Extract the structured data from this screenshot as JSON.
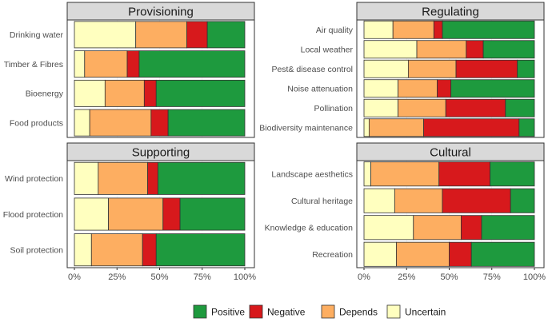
{
  "chart_data": {
    "type": "bar",
    "orientation": "horizontal",
    "stacked": true,
    "x_ticks": [
      "0%",
      "25%",
      "50%",
      "75%",
      "100%"
    ],
    "xlim": [
      0,
      100
    ],
    "segment_order": [
      "Uncertain",
      "Depends",
      "Negative",
      "Positive"
    ],
    "legend": [
      {
        "name": "Positive",
        "color": "#1e9a3e"
      },
      {
        "name": "Negative",
        "color": "#d7191c"
      },
      {
        "name": "Depends",
        "color": "#fdae61"
      },
      {
        "name": "Uncertain",
        "color": "#ffffbf"
      }
    ],
    "panels": [
      {
        "title": "Provisioning",
        "categories": [
          {
            "label": "Drinking water",
            "Uncertain": 36,
            "Depends": 30,
            "Negative": 12,
            "Positive": 22
          },
          {
            "label": "Timber & Fibres",
            "Uncertain": 6,
            "Depends": 25,
            "Negative": 7,
            "Positive": 62
          },
          {
            "label": "Bioenergy",
            "Uncertain": 18,
            "Depends": 23,
            "Negative": 7,
            "Positive": 52
          },
          {
            "label": "Food products",
            "Uncertain": 9,
            "Depends": 36,
            "Negative": 10,
            "Positive": 45
          }
        ]
      },
      {
        "title": "Regulating",
        "categories": [
          {
            "label": "Air quality",
            "Uncertain": 17,
            "Depends": 24,
            "Negative": 5,
            "Positive": 54
          },
          {
            "label": "Local weather",
            "Uncertain": 31,
            "Depends": 29,
            "Negative": 10,
            "Positive": 30
          },
          {
            "label": "Pest& disease control",
            "Uncertain": 26,
            "Depends": 28,
            "Negative": 36,
            "Positive": 10
          },
          {
            "label": "Noise attenuation",
            "Uncertain": 20,
            "Depends": 23,
            "Negative": 8,
            "Positive": 49
          },
          {
            "label": "Pollination",
            "Uncertain": 20,
            "Depends": 28,
            "Negative": 35,
            "Positive": 17
          },
          {
            "label": "Biodiversity maintenance",
            "Uncertain": 3,
            "Depends": 32,
            "Negative": 56,
            "Positive": 9
          }
        ]
      },
      {
        "title": "Supporting",
        "categories": [
          {
            "label": "Wind protection",
            "Uncertain": 14,
            "Depends": 29,
            "Negative": 6,
            "Positive": 51
          },
          {
            "label": "Flood protection",
            "Uncertain": 20,
            "Depends": 32,
            "Negative": 10,
            "Positive": 38
          },
          {
            "label": "Soil protection",
            "Uncertain": 10,
            "Depends": 30,
            "Negative": 8,
            "Positive": 52
          }
        ]
      },
      {
        "title": "Cultural",
        "categories": [
          {
            "label": "Landscape aesthetics",
            "Uncertain": 4,
            "Depends": 40,
            "Negative": 30,
            "Positive": 26
          },
          {
            "label": "Cultural heritage",
            "Uncertain": 18,
            "Depends": 28,
            "Negative": 40,
            "Positive": 14
          },
          {
            "label": "Knowledge & education",
            "Uncertain": 29,
            "Depends": 28,
            "Negative": 12,
            "Positive": 31
          },
          {
            "label": "Recreation",
            "Uncertain": 19,
            "Depends": 31,
            "Negative": 13,
            "Positive": 37
          }
        ]
      }
    ]
  }
}
